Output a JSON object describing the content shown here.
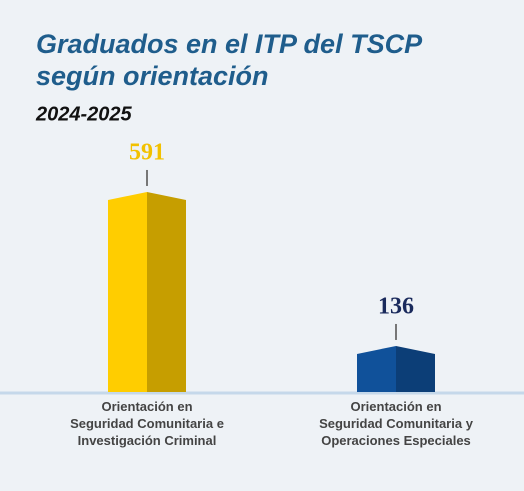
{
  "chart_data": {
    "type": "bar",
    "title": [
      "Graduados en el ITP del TSCP",
      "según orientación"
    ],
    "subtitle": "2024-2025",
    "categories": [
      "Orientación en\nSeguridad Comunitaria e\nInvestigación Criminal",
      "Orientación en\nSeguridad Comunitaria y\nOperaciones Especiales"
    ],
    "values": [
      591,
      136
    ],
    "colors": [
      "#f2c100",
      "#0f4c91"
    ],
    "label_colors": [
      "#f2c100",
      "#1a2a5c"
    ],
    "ylim": [
      0,
      650
    ]
  }
}
